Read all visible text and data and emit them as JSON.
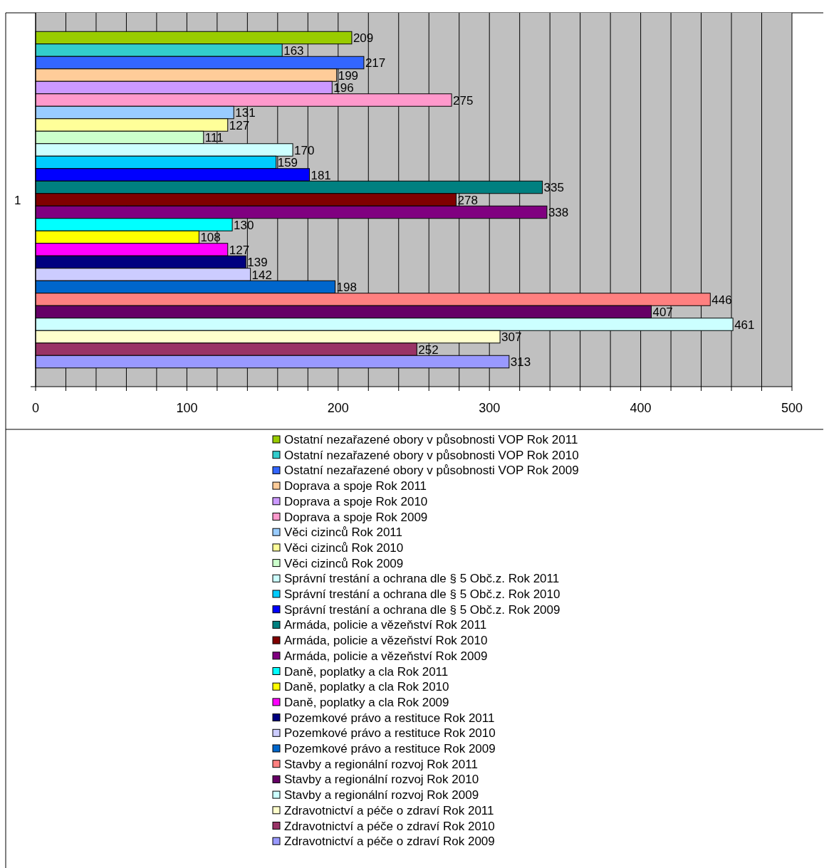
{
  "chart_data": {
    "type": "bar",
    "orientation": "horizontal",
    "categories": [
      "1"
    ],
    "series": [
      {
        "name": "Ostatní nezařazené obory v působnosti VOP Rok 2011",
        "color": "#99cc00",
        "values": [
          209
        ]
      },
      {
        "name": "Ostatní nezařazené obory v působnosti VOP Rok 2010",
        "color": "#33cccc",
        "values": [
          163
        ]
      },
      {
        "name": "Ostatní nezařazené obory v působnosti VOP Rok 2009",
        "color": "#3366ff",
        "values": [
          217
        ]
      },
      {
        "name": "Doprava a spoje Rok 2011",
        "color": "#ffcc99",
        "values": [
          199
        ]
      },
      {
        "name": "Doprava a spoje Rok 2010",
        "color": "#cc99ff",
        "values": [
          196
        ]
      },
      {
        "name": "Doprava a spoje Rok 2009",
        "color": "#ff99cc",
        "values": [
          275
        ]
      },
      {
        "name": "Věci cizinců Rok 2011",
        "color": "#99ccff",
        "values": [
          131
        ]
      },
      {
        "name": "Věci cizinců Rok 2010",
        "color": "#ffff99",
        "values": [
          127
        ]
      },
      {
        "name": "Věci cizinců Rok 2009",
        "color": "#ccffcc",
        "values": [
          111
        ]
      },
      {
        "name": "Správní trestání a ochrana dle § 5 Obč.z. Rok 2011",
        "color": "#ccffff",
        "values": [
          170
        ]
      },
      {
        "name": "Správní trestání a ochrana dle § 5 Obč.z. Rok 2010",
        "color": "#00ccff",
        "values": [
          159
        ]
      },
      {
        "name": "Správní trestání a ochrana dle § 5 Obč.z. Rok 2009",
        "color": "#0000ff",
        "values": [
          181
        ]
      },
      {
        "name": "Armáda, policie a vězeňství Rok 2011",
        "color": "#008080",
        "values": [
          335
        ]
      },
      {
        "name": "Armáda, policie a vězeňství Rok 2010",
        "color": "#800000",
        "values": [
          278
        ]
      },
      {
        "name": "Armáda, policie a vězeňství Rok 2009",
        "color": "#800080",
        "values": [
          338
        ]
      },
      {
        "name": "Daně, poplatky a cla Rok 2011",
        "color": "#00ffff",
        "values": [
          130
        ]
      },
      {
        "name": "Daně, poplatky a cla Rok 2010",
        "color": "#ffff00",
        "values": [
          108
        ]
      },
      {
        "name": "Daně, poplatky a cla Rok 2009",
        "color": "#ff00ff",
        "values": [
          127
        ]
      },
      {
        "name": "Pozemkové právo a restituce Rok 2011",
        "color": "#000080",
        "values": [
          139
        ]
      },
      {
        "name": "Pozemkové právo a restituce Rok 2010",
        "color": "#ccccff",
        "values": [
          142
        ]
      },
      {
        "name": "Pozemkové právo a restituce Rok 2009",
        "color": "#0066cc",
        "values": [
          198
        ]
      },
      {
        "name": "Stavby a regionální rozvoj Rok 2011",
        "color": "#ff8080",
        "values": [
          446
        ]
      },
      {
        "name": "Stavby a regionální rozvoj Rok 2010",
        "color": "#660066",
        "values": [
          407
        ]
      },
      {
        "name": "Stavby a regionální rozvoj Rok 2009",
        "color": "#ccffff",
        "values": [
          461
        ]
      },
      {
        "name": "Zdravotnictví a péče o zdraví Rok 2011",
        "color": "#ffffcc",
        "values": [
          307
        ]
      },
      {
        "name": "Zdravotnictví a péče o zdraví Rok 2010",
        "color": "#993366",
        "values": [
          252
        ]
      },
      {
        "name": "Zdravotnictví a péče o zdraví Rok 2009",
        "color": "#9999ff",
        "values": [
          313
        ]
      }
    ],
    "xlim": [
      0,
      500
    ],
    "xticks": [
      0,
      {
        "value": 20,
        "label": null
      },
      {
        "value": 40,
        "label": null
      },
      {
        "value": 60,
        "label": null
      },
      {
        "value": 80,
        "label": null
      },
      100,
      {
        "value": 120,
        "label": null
      },
      {
        "value": 140,
        "label": null
      },
      {
        "value": 160,
        "label": null
      },
      {
        "value": 180,
        "label": null
      },
      200,
      {
        "value": 220,
        "label": null
      },
      {
        "value": 240,
        "label": null
      },
      {
        "value": 260,
        "label": null
      },
      {
        "value": 280,
        "label": null
      },
      300,
      {
        "value": 320,
        "label": null
      },
      {
        "value": 340,
        "label": null
      },
      {
        "value": 360,
        "label": null
      },
      {
        "value": 380,
        "label": null
      },
      400,
      {
        "value": 420,
        "label": null
      },
      {
        "value": 440,
        "label": null
      },
      {
        "value": 460,
        "label": null
      },
      {
        "value": 480,
        "label": null
      },
      500
    ],
    "grid": "x",
    "data_labels": true,
    "legend": "bottom"
  }
}
